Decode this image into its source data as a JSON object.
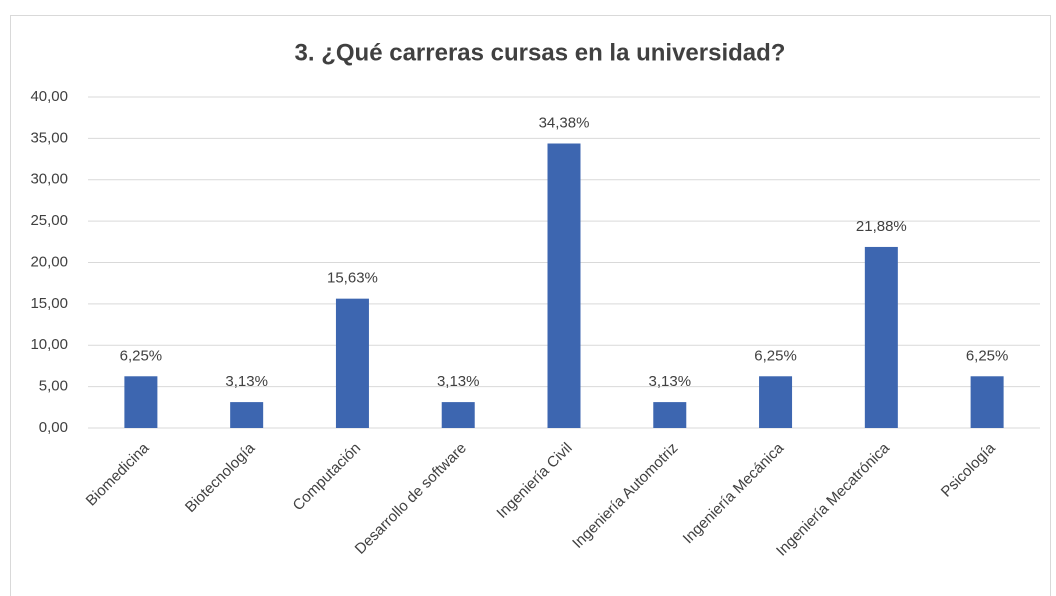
{
  "chart_data": {
    "type": "bar",
    "title": "3. ¿Qué carreras cursas en la universidad?",
    "categories": [
      "Biomedicina",
      "Biotecnología",
      "Computación",
      "Desarrollo de software",
      "Ingeniería Civil",
      "Ingeniería Automotriz",
      "Ingeniería Mecánica",
      "Ingeniería Mecatrónica",
      "Psicología"
    ],
    "values": [
      6.25,
      3.13,
      15.63,
      3.13,
      34.38,
      3.13,
      6.25,
      21.88,
      6.25
    ],
    "value_labels": [
      "6,25%",
      "3,13%",
      "15,63%",
      "3,13%",
      "34,38%",
      "3,13%",
      "6,25%",
      "21,88%",
      "6,25%"
    ],
    "color": "#3d66b0",
    "ylim": [
      0,
      40
    ],
    "yticks": [
      {
        "value": 0,
        "label": "0,00"
      },
      {
        "value": 5,
        "label": "5,00"
      },
      {
        "value": 10,
        "label": "10,00"
      },
      {
        "value": 15,
        "label": "15,00"
      },
      {
        "value": 20,
        "label": "20,00"
      },
      {
        "value": 25,
        "label": "25,00"
      },
      {
        "value": 30,
        "label": "30,00"
      },
      {
        "value": 35,
        "label": "35,00"
      },
      {
        "value": 40,
        "label": "40,00"
      }
    ],
    "grid": true
  }
}
